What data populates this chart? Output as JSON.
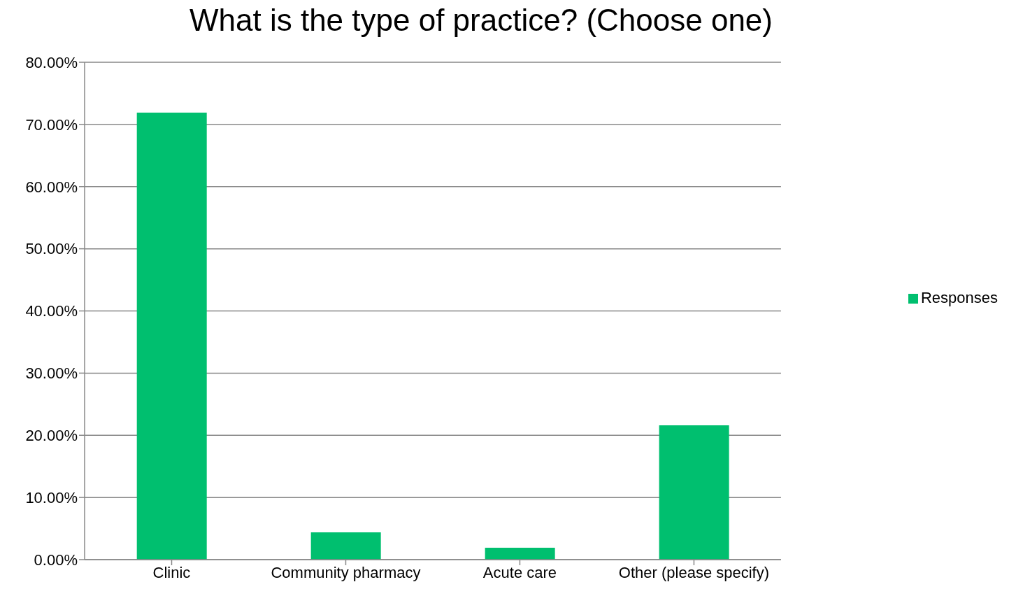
{
  "chart_data": {
    "type": "bar",
    "title": "What is the type of practice? (Choose one)",
    "categories": [
      "Clinic",
      "Community pharmacy",
      "Acute care",
      "Other (please specify)"
    ],
    "series": [
      {
        "name": "Responses",
        "color": "#00bf6f",
        "values": [
          71.9,
          4.4,
          1.9,
          21.6
        ]
      }
    ],
    "ylim": [
      0,
      80
    ],
    "yticks": [
      {
        "value": 0,
        "label": "0.00%"
      },
      {
        "value": 10,
        "label": "10.00%"
      },
      {
        "value": 20,
        "label": "20.00%"
      },
      {
        "value": 30,
        "label": "30.00%"
      },
      {
        "value": 40,
        "label": "40.00%"
      },
      {
        "value": 50,
        "label": "50.00%"
      },
      {
        "value": 60,
        "label": "60.00%"
      },
      {
        "value": 70,
        "label": "70.00%"
      },
      {
        "value": 80,
        "label": "80.00%"
      }
    ],
    "grid": "y",
    "legend": "right"
  }
}
